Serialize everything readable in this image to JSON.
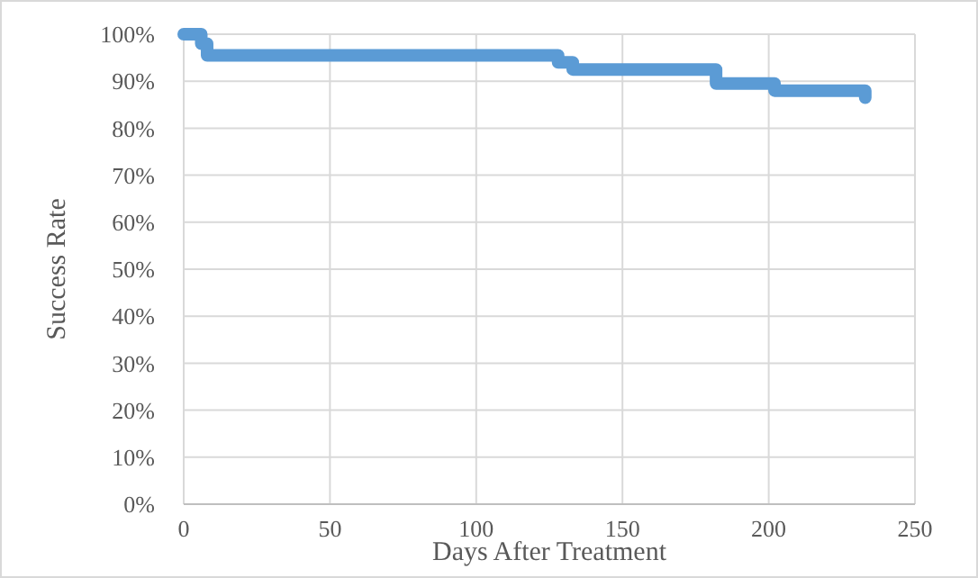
{
  "chart_data": {
    "type": "step",
    "xlabel": "Days After Treatment",
    "ylabel": "Success Rate",
    "x": [
      0,
      6,
      8,
      128,
      133,
      182,
      202,
      233
    ],
    "series": [
      {
        "color": "#5b9bd5",
        "values": [
          100,
          98,
          95.5,
          94,
          92.5,
          89.5,
          88,
          86.5
        ]
      }
    ],
    "xlim": [
      0,
      250
    ],
    "xticks": [
      0,
      50,
      100,
      150,
      200,
      250
    ],
    "ylim": [
      0,
      100
    ],
    "yticks": [
      {
        "value": 0,
        "label": "0%"
      },
      {
        "value": 10,
        "label": "10%"
      },
      {
        "value": 20,
        "label": "20%"
      },
      {
        "value": 30,
        "label": "30%"
      },
      {
        "value": 40,
        "label": "40%"
      },
      {
        "value": 50,
        "label": "50%"
      },
      {
        "value": 60,
        "label": "60%"
      },
      {
        "value": 70,
        "label": "70%"
      },
      {
        "value": 80,
        "label": "80%"
      },
      {
        "value": 90,
        "label": "90%"
      },
      {
        "value": 100,
        "label": "100%"
      }
    ],
    "grid": true
  }
}
